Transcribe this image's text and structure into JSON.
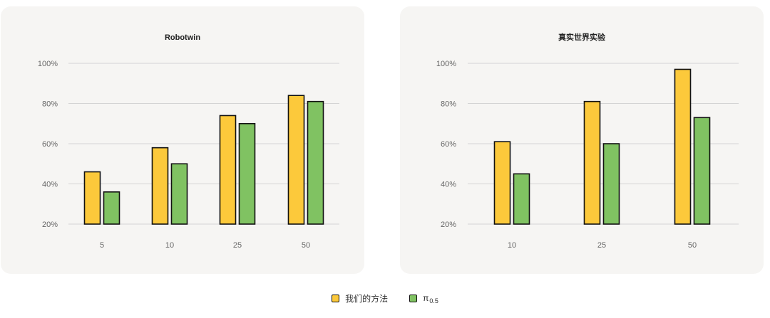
{
  "colors": {
    "ours": "#fcc93b",
    "baseline": "#80c262",
    "grid": "#d4d4d4",
    "axis_text": "#666666"
  },
  "legend": {
    "ours_label": "我们的方法",
    "baseline_symbol": "π",
    "baseline_subscript": "0.5"
  },
  "chart_data": [
    {
      "type": "bar",
      "title": "Robotwin",
      "categories": [
        "5",
        "10",
        "25",
        "50"
      ],
      "series": [
        {
          "name": "我们的方法",
          "values": [
            46,
            58,
            74,
            84
          ]
        },
        {
          "name": "π0.5",
          "values": [
            36,
            50,
            70,
            81
          ]
        }
      ],
      "ylim": [
        20,
        100
      ],
      "yticks": [
        20,
        40,
        60,
        80,
        100
      ],
      "ytick_labels": [
        "20%",
        "40%",
        "60%",
        "80%",
        "100%"
      ],
      "grid": true,
      "legend_position": "bottom-center"
    },
    {
      "type": "bar",
      "title": "真实世界实验",
      "categories": [
        "10",
        "25",
        "50"
      ],
      "series": [
        {
          "name": "我们的方法",
          "values": [
            61,
            81,
            97
          ]
        },
        {
          "name": "π0.5",
          "values": [
            45,
            60,
            73
          ]
        }
      ],
      "ylim": [
        20,
        100
      ],
      "yticks": [
        20,
        40,
        60,
        80,
        100
      ],
      "ytick_labels": [
        "20%",
        "40%",
        "60%",
        "80%",
        "100%"
      ],
      "grid": true,
      "legend_position": "bottom-center"
    }
  ]
}
